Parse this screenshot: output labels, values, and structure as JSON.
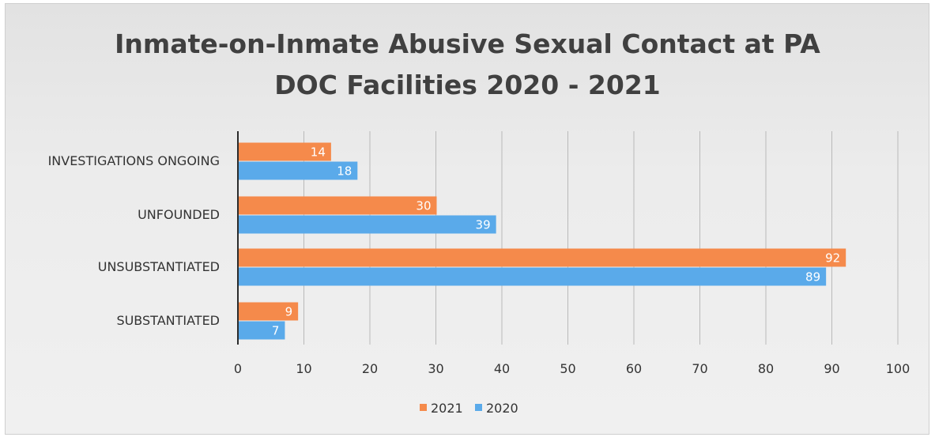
{
  "chart_data": {
    "type": "bar",
    "orientation": "horizontal",
    "title": "Inmate-on-Inmate Abusive Sexual Contact at PA DOC Facilities 2020 - 2021",
    "title_lines": [
      "Inmate-on-Inmate Abusive Sexual Contact at PA",
      "DOC Facilities 2020 - 2021"
    ],
    "categories": [
      "INVESTIGATIONS ONGOING",
      "UNFOUNDED",
      "UNSUBSTANTIATED",
      "SUBSTANTIATED"
    ],
    "series": [
      {
        "name": "2021",
        "values": [
          14,
          30,
          92,
          9
        ],
        "color": "#f58a4b"
      },
      {
        "name": "2020",
        "values": [
          18,
          39,
          89,
          7
        ],
        "color": "#5aaaea"
      }
    ],
    "xlim": [
      0,
      100
    ],
    "xticks": [
      0,
      10,
      20,
      30,
      40,
      50,
      60,
      70,
      80,
      90,
      100
    ],
    "xlabel": "",
    "ylabel": "",
    "grid": "vertical",
    "legend": "bottom",
    "data_labels": true
  }
}
